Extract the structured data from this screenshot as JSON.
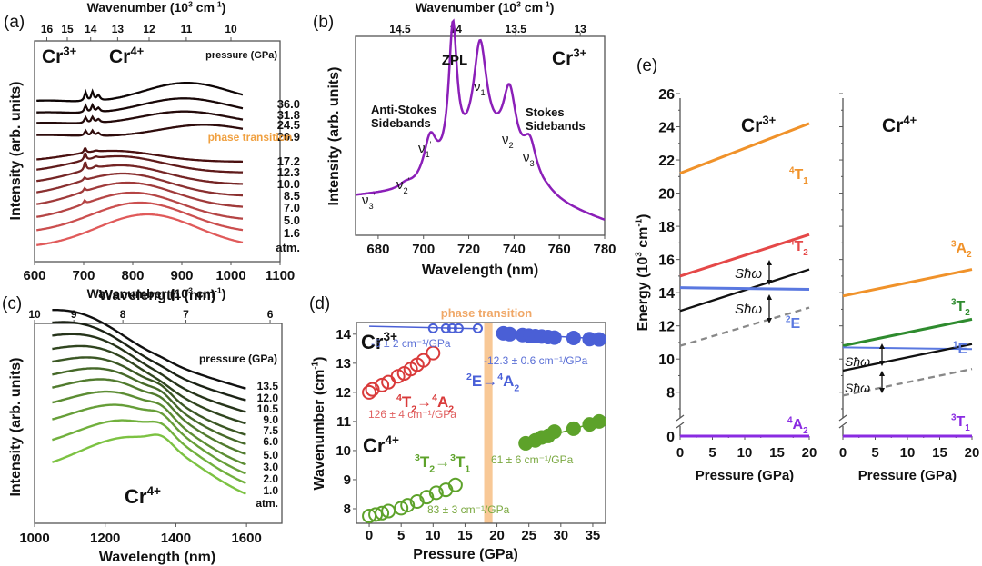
{
  "chart_data": [
    {
      "panel": "(a)",
      "type": "line",
      "title": "",
      "xlabel": "Wavelength (nm)",
      "ylabel": "Intensity (arb. units)",
      "top_xlabel": "Wavenumber (10³ cm⁻¹)",
      "xlim": [
        600,
        1100
      ],
      "xticks": [
        600,
        700,
        800,
        900,
        1000,
        1100
      ],
      "top_ticks": [
        16,
        15,
        14,
        13,
        12,
        11,
        10
      ],
      "annotations": [
        "Cr3+",
        "Cr4+",
        "pressure (GPa)",
        "phase transition"
      ],
      "legend_title": "pressure (GPa)",
      "series": [
        {
          "name": "36.0",
          "peak_nm": 910,
          "sharp": true
        },
        {
          "name": "31.8",
          "peak_nm": 905,
          "sharp": true
        },
        {
          "name": "24.5",
          "peak_nm": 905,
          "sharp": true
        },
        {
          "name": "20.9",
          "peak_nm": 945,
          "sharp": true
        },
        {
          "name": "17.2",
          "peak_nm": 760,
          "sharp": true
        },
        {
          "name": "12.3",
          "peak_nm": 770,
          "sharp": true
        },
        {
          "name": "10.0",
          "peak_nm": 775,
          "sharp": true
        },
        {
          "name": "8.5",
          "peak_nm": 780,
          "sharp": false
        },
        {
          "name": "7.0",
          "peak_nm": 790,
          "sharp": false
        },
        {
          "name": "5.0",
          "peak_nm": 800,
          "sharp": false
        },
        {
          "name": "1.6",
          "peak_nm": 815,
          "sharp": false
        },
        {
          "name": "atm.",
          "peak_nm": 830,
          "sharp": false
        }
      ],
      "phase_transition_label": "phase transition"
    },
    {
      "panel": "(b)",
      "type": "line",
      "xlabel": "Wavelength (nm)",
      "ylabel": "Intensity (arb. units)",
      "top_xlabel": "Wavenumber (10³ cm⁻¹)",
      "xlim": [
        670,
        780
      ],
      "xticks": [
        680,
        700,
        720,
        740,
        760,
        780
      ],
      "top_ticks": [
        14.5,
        14,
        13.5,
        13
      ],
      "peaks": [
        {
          "label": "ν3'",
          "x": 683,
          "rel": 0.15
        },
        {
          "label": "ν2'",
          "x": 692,
          "rel": 0.2
        },
        {
          "label": "ν1'",
          "x": 703,
          "rel": 0.42
        },
        {
          "label": "ZPL",
          "x": 713,
          "rel": 1.0
        },
        {
          "label": "ν1",
          "x": 725,
          "rel": 0.79
        },
        {
          "label": "ν2",
          "x": 738,
          "rel": 0.57
        },
        {
          "label": "ν3",
          "x": 747,
          "rel": 0.37
        }
      ],
      "annotations": [
        "Anti-Stokes Sidebands",
        "Stokes Sidebands",
        "Cr3+"
      ]
    },
    {
      "panel": "(c)",
      "type": "line",
      "xlabel": "Wavelength (nm)",
      "ylabel": "Intensity (arb. units)",
      "top_xlabel": "Wavenumber (10³ cm⁻¹)",
      "xlim": [
        1000,
        1700
      ],
      "xticks": [
        1000,
        1200,
        1400,
        1600
      ],
      "top_ticks": [
        10,
        9,
        8,
        7,
        6
      ],
      "legend_title": "pressure (GPa)",
      "series": [
        {
          "name": "13.5",
          "peak_nm": 1130
        },
        {
          "name": "12.0",
          "peak_nm": 1150
        },
        {
          "name": "10.5",
          "peak_nm": 1170
        },
        {
          "name": "9.0",
          "peak_nm": 1190
        },
        {
          "name": "7.5",
          "peak_nm": 1205
        },
        {
          "name": "6.0",
          "peak_nm": 1220
        },
        {
          "name": "5.0",
          "peak_nm": 1235
        },
        {
          "name": "3.0",
          "peak_nm": 1250
        },
        {
          "name": "2.0",
          "peak_nm": 1265
        },
        {
          "name": "1.0",
          "peak_nm": 1280
        },
        {
          "name": "atm.",
          "peak_nm": 1295
        }
      ],
      "annotations": [
        "Cr4+"
      ]
    },
    {
      "panel": "(d)",
      "type": "scatter",
      "xlabel": "Pressure (GPa)",
      "ylabel": "Wavenumber (cm⁻¹)",
      "xlim": [
        -2,
        37
      ],
      "ylim": [
        7.5,
        14.4
      ],
      "xticks": [
        0,
        5,
        10,
        15,
        20,
        25,
        30,
        35
      ],
      "yticks": [
        8,
        9,
        10,
        11,
        12,
        13,
        14
      ],
      "phase_transition": {
        "x": [
          18,
          19.3
        ],
        "label": "phase transition"
      },
      "series": [
        {
          "name": "2E→4A2 (low)",
          "color": "#4a5fd6",
          "filled": false,
          "x": [
            10,
            12,
            13,
            14,
            17
          ],
          "y": [
            14.2,
            14.2,
            14.2,
            14.2,
            14.2
          ],
          "fit_x": [
            0,
            17
          ],
          "fit_y": [
            14.27,
            14.19
          ],
          "slope_label": "-5 ± 2 cm⁻¹/GPa"
        },
        {
          "name": "2E→4A2 (high)",
          "color": "#4a5fd6",
          "filled": true,
          "x": [
            21,
            22,
            24,
            25,
            26,
            27,
            28,
            29,
            32,
            34.5,
            36
          ],
          "y": [
            14.03,
            14.0,
            13.97,
            13.95,
            13.93,
            13.92,
            13.9,
            13.88,
            13.87,
            13.83,
            13.82
          ],
          "fit_x": [
            21,
            36
          ],
          "fit_y": [
            14.03,
            13.84
          ],
          "slope_label": "-12.3 ± 0.6 cm⁻¹/GPa"
        },
        {
          "name": "4T2→4A2",
          "color": "#d93a3a",
          "filled": false,
          "x": [
            0,
            0.5,
            2,
            3,
            4.5,
            5.5,
            6.5,
            7.5,
            8.5,
            10
          ],
          "y": [
            12.0,
            12.1,
            12.25,
            12.35,
            12.55,
            12.65,
            12.8,
            12.95,
            13.1,
            13.35
          ],
          "slope_label": "126 ± 4 cm⁻¹/GPa"
        },
        {
          "name": "3T2→3T1 (low)",
          "color": "#5da22a",
          "filled": false,
          "x": [
            0,
            1,
            2,
            3,
            5,
            6,
            7.5,
            9,
            10.5,
            12,
            13.5
          ],
          "y": [
            7.75,
            7.8,
            7.85,
            7.92,
            8.02,
            8.12,
            8.25,
            8.4,
            8.55,
            8.65,
            8.82
          ],
          "slope_label": "83 ± 3 cm⁻¹/GPa"
        },
        {
          "name": "3T2→3T1 (high)",
          "color": "#5da22a",
          "filled": true,
          "x": [
            24.5,
            26,
            27,
            28,
            29,
            32,
            34.5,
            36
          ],
          "y": [
            10.25,
            10.35,
            10.45,
            10.5,
            10.65,
            10.75,
            10.9,
            11.0
          ],
          "fit_x": [
            24.5,
            36
          ],
          "fit_y": [
            10.27,
            11.0
          ],
          "slope_label": "61 ± 6 cm⁻¹/GPa"
        }
      ],
      "annotations": [
        "Cr3+",
        "Cr4+",
        "2E→4A2",
        "4T2→4A2",
        "3T2→3T1"
      ]
    },
    {
      "panel": "(e)",
      "type": "line",
      "xlabel": "Pressure (GPa)",
      "ylabel": "Energy (10³ cm⁻¹)",
      "xlim": [
        0,
        20
      ],
      "ylim": [
        7,
        26
      ],
      "xticks": [
        0,
        5,
        10,
        15,
        20
      ],
      "yticks": [
        0,
        8,
        10,
        12,
        14,
        16,
        18,
        20,
        22,
        24,
        26
      ],
      "axis_break": true,
      "subplots": [
        {
          "title": "Cr3+",
          "levels": [
            {
              "name": "4T1",
              "color": "#f0922a",
              "y0": 21.2,
              "y1": 24.2,
              "style": "solid"
            },
            {
              "name": "4T2",
              "color": "#e54848",
              "y0": 15.0,
              "y1": 17.5,
              "style": "solid"
            },
            {
              "name": "black",
              "color": "#111111",
              "y0": 12.9,
              "y1": 15.4,
              "style": "solid"
            },
            {
              "name": "2E",
              "color": "#5a78e0",
              "y0": 14.3,
              "y1": 14.2,
              "style": "solid"
            },
            {
              "name": "grey",
              "color": "#888888",
              "y0": 10.8,
              "y1": 13.1,
              "style": "dashed"
            },
            {
              "name": "4A2",
              "color": "#8a2be2",
              "y0": 0,
              "y1": 0,
              "style": "solid"
            }
          ],
          "annotations": [
            "Sħω",
            "Sħω"
          ]
        },
        {
          "title": "Cr4+",
          "levels": [
            {
              "name": "3A2",
              "color": "#f0922a",
              "y0": 13.8,
              "y1": 15.4,
              "style": "solid"
            },
            {
              "name": "3T2",
              "color": "#2e8b2e",
              "y0": 10.8,
              "y1": 12.4,
              "style": "solid"
            },
            {
              "name": "1E",
              "color": "#5a78e0",
              "y0": 10.7,
              "y1": 10.6,
              "style": "solid"
            },
            {
              "name": "black",
              "color": "#111111",
              "y0": 9.3,
              "y1": 10.9,
              "style": "solid"
            },
            {
              "name": "grey",
              "color": "#888888",
              "y0": 7.8,
              "y1": 9.4,
              "style": "dashed"
            },
            {
              "name": "3T1",
              "color": "#8a2be2",
              "y0": 0,
              "y1": 0,
              "style": "solid"
            }
          ],
          "annotations": [
            "Sħω",
            "Sħω"
          ]
        }
      ]
    }
  ],
  "labels": {
    "a": "(a)",
    "b": "(b)",
    "c": "(c)",
    "d": "(d)",
    "e": "(e)",
    "wavenumber": "Wavenumber (10",
    "wavenumber_tail": " cm",
    "wavelength": "Wavelength (nm)",
    "intensity": "Intensity (arb. units)",
    "pressure_gpa": "pressure (GPa)",
    "phase_transition": "phase transition",
    "pressure_axis": "Pressure (GPa)",
    "energy_axis": "Energy (10",
    "wn_d": "Wavenumber (cm",
    "zpl": "ZPL",
    "anti_stokes_1": "Anti-Stokes",
    "anti_stokes_2": "Sidebands",
    "stokes_1": "Stokes",
    "stokes_2": "Sidebands",
    "cr": "Cr",
    "cr3": "3+",
    "cr4": "4+",
    "shw": "Sħω"
  }
}
